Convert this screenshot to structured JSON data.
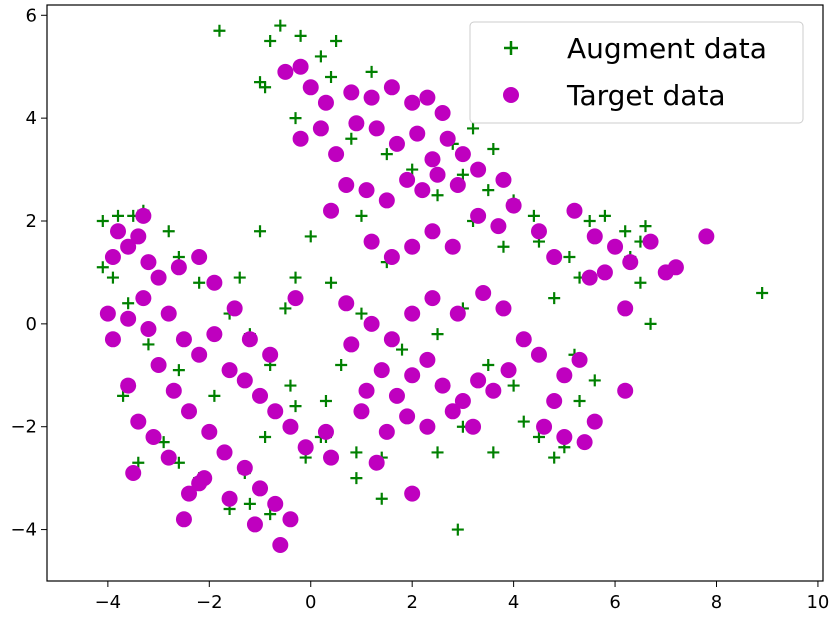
{
  "chart_data": {
    "type": "scatter",
    "title": "",
    "xlabel": "",
    "ylabel": "",
    "xlim": [
      -5.2,
      10.1
    ],
    "ylim": [
      -5.0,
      6.2
    ],
    "xticks": [
      -4,
      -2,
      0,
      2,
      4,
      6,
      8,
      10
    ],
    "yticks": [
      -4,
      -2,
      0,
      2,
      4,
      6
    ],
    "grid": false,
    "legend_position": "top-right",
    "series": [
      {
        "name": "Augment data",
        "marker": "plus",
        "color": "#008000",
        "points": [
          [
            -1.8,
            5.7
          ],
          [
            -0.6,
            5.8
          ],
          [
            -0.8,
            5.5
          ],
          [
            -0.2,
            5.6
          ],
          [
            0.5,
            5.5
          ],
          [
            0.2,
            5.2
          ],
          [
            -1.0,
            4.7
          ],
          [
            -0.9,
            4.6
          ],
          [
            1.2,
            4.9
          ],
          [
            0.4,
            4.8
          ],
          [
            -0.3,
            4.0
          ],
          [
            0.8,
            3.6
          ],
          [
            1.5,
            3.3
          ],
          [
            2.0,
            3.0
          ],
          [
            2.8,
            3.5
          ],
          [
            3.2,
            3.8
          ],
          [
            3.6,
            3.4
          ],
          [
            3.0,
            2.9
          ],
          [
            3.5,
            2.6
          ],
          [
            4.0,
            2.4
          ],
          [
            4.4,
            2.1
          ],
          [
            5.5,
            2.0
          ],
          [
            5.8,
            2.1
          ],
          [
            6.2,
            1.8
          ],
          [
            6.5,
            1.6
          ],
          [
            6.6,
            1.9
          ],
          [
            6.3,
            1.3
          ],
          [
            6.5,
            0.8
          ],
          [
            6.7,
            0.0
          ],
          [
            8.9,
            0.6
          ],
          [
            0.0,
            1.7
          ],
          [
            1.0,
            2.1
          ],
          [
            1.5,
            1.2
          ],
          [
            2.5,
            2.5
          ],
          [
            3.2,
            2.0
          ],
          [
            3.8,
            1.5
          ],
          [
            4.5,
            1.6
          ],
          [
            5.1,
            1.3
          ],
          [
            5.3,
            0.9
          ],
          [
            4.8,
            0.5
          ],
          [
            -1.0,
            1.8
          ],
          [
            -0.3,
            0.9
          ],
          [
            -0.5,
            0.3
          ],
          [
            0.4,
            0.8
          ],
          [
            1.0,
            0.2
          ],
          [
            1.8,
            -0.5
          ],
          [
            2.5,
            -0.2
          ],
          [
            3.0,
            0.3
          ],
          [
            3.5,
            -0.8
          ],
          [
            4.0,
            -1.2
          ],
          [
            4.2,
            -1.9
          ],
          [
            4.5,
            -2.2
          ],
          [
            4.8,
            -2.6
          ],
          [
            5.0,
            -2.4
          ],
          [
            5.3,
            -1.5
          ],
          [
            5.6,
            -1.1
          ],
          [
            5.2,
            -0.6
          ],
          [
            0.9,
            -2.5
          ],
          [
            1.4,
            -2.6
          ],
          [
            1.4,
            -3.4
          ],
          [
            0.9,
            -3.0
          ],
          [
            2.5,
            -2.5
          ],
          [
            3.0,
            -2.0
          ],
          [
            2.9,
            -4.0
          ],
          [
            3.6,
            -2.5
          ],
          [
            0.3,
            -1.5
          ],
          [
            0.6,
            -0.8
          ],
          [
            0.3,
            -2.2
          ],
          [
            -0.3,
            -1.6
          ],
          [
            -0.6,
            -4.3
          ],
          [
            -0.8,
            -3.7
          ],
          [
            -1.2,
            -3.5
          ],
          [
            -1.6,
            -3.6
          ],
          [
            -2.2,
            -3.0
          ],
          [
            -2.6,
            -2.7
          ],
          [
            -3.4,
            -2.7
          ],
          [
            -3.7,
            -1.4
          ],
          [
            -4.1,
            1.1
          ],
          [
            -4.1,
            2.0
          ],
          [
            -3.8,
            2.1
          ],
          [
            -3.5,
            2.1
          ],
          [
            -3.3,
            2.2
          ],
          [
            -2.6,
            1.3
          ],
          [
            -2.2,
            0.8
          ],
          [
            -1.6,
            0.2
          ],
          [
            -1.2,
            -0.2
          ],
          [
            -0.8,
            -0.8
          ],
          [
            -0.4,
            -1.2
          ],
          [
            -0.1,
            -2.6
          ],
          [
            0.2,
            -2.2
          ],
          [
            -1.9,
            -1.4
          ],
          [
            -2.6,
            -0.9
          ],
          [
            -3.2,
            -0.4
          ],
          [
            -3.6,
            0.4
          ],
          [
            -3.9,
            0.9
          ],
          [
            -2.8,
            1.8
          ],
          [
            -1.4,
            0.9
          ],
          [
            -0.9,
            -2.2
          ],
          [
            -2.9,
            -2.3
          ],
          [
            -1.3,
            -2.9
          ]
        ]
      },
      {
        "name": "Target data",
        "marker": "circle",
        "color": "#bf00bf",
        "points": [
          [
            -0.2,
            5.0
          ],
          [
            -0.5,
            4.9
          ],
          [
            0.0,
            4.6
          ],
          [
            0.3,
            4.3
          ],
          [
            0.8,
            4.5
          ],
          [
            1.2,
            4.4
          ],
          [
            1.6,
            4.6
          ],
          [
            2.0,
            4.3
          ],
          [
            2.3,
            4.4
          ],
          [
            2.6,
            4.1
          ],
          [
            -0.2,
            3.6
          ],
          [
            0.2,
            3.8
          ],
          [
            0.5,
            3.3
          ],
          [
            0.9,
            3.9
          ],
          [
            1.3,
            3.8
          ],
          [
            1.7,
            3.5
          ],
          [
            2.1,
            3.7
          ],
          [
            2.4,
            3.2
          ],
          [
            2.7,
            3.6
          ],
          [
            3.0,
            3.3
          ],
          [
            3.3,
            3.0
          ],
          [
            2.9,
            2.7
          ],
          [
            2.5,
            2.9
          ],
          [
            2.2,
            2.6
          ],
          [
            1.9,
            2.8
          ],
          [
            1.5,
            2.4
          ],
          [
            1.1,
            2.6
          ],
          [
            0.7,
            2.7
          ],
          [
            0.4,
            2.2
          ],
          [
            3.8,
            2.8
          ],
          [
            4.0,
            2.3
          ],
          [
            3.7,
            1.9
          ],
          [
            3.3,
            2.1
          ],
          [
            2.8,
            1.5
          ],
          [
            2.4,
            1.8
          ],
          [
            2.0,
            1.5
          ],
          [
            1.6,
            1.3
          ],
          [
            1.2,
            1.6
          ],
          [
            4.5,
            1.8
          ],
          [
            4.8,
            1.3
          ],
          [
            5.2,
            2.2
          ],
          [
            5.6,
            1.7
          ],
          [
            6.0,
            1.5
          ],
          [
            6.3,
            1.2
          ],
          [
            6.7,
            1.6
          ],
          [
            7.2,
            1.1
          ],
          [
            7.0,
            1.0
          ],
          [
            7.8,
            1.7
          ],
          [
            5.8,
            1.0
          ],
          [
            5.5,
            0.9
          ],
          [
            6.2,
            0.3
          ],
          [
            6.2,
            -1.3
          ],
          [
            5.3,
            -0.7
          ],
          [
            5.0,
            -1.0
          ],
          [
            4.8,
            -1.5
          ],
          [
            4.5,
            -0.6
          ],
          [
            4.2,
            -0.3
          ],
          [
            3.9,
            -0.9
          ],
          [
            4.6,
            -2.0
          ],
          [
            5.0,
            -2.2
          ],
          [
            5.4,
            -2.3
          ],
          [
            5.6,
            -1.9
          ],
          [
            3.6,
            -1.3
          ],
          [
            3.3,
            -1.1
          ],
          [
            3.0,
            -1.5
          ],
          [
            2.6,
            -1.2
          ],
          [
            2.3,
            -0.7
          ],
          [
            2.0,
            -1.0
          ],
          [
            1.7,
            -1.4
          ],
          [
            1.4,
            -0.9
          ],
          [
            1.1,
            -1.3
          ],
          [
            1.9,
            -1.8
          ],
          [
            2.3,
            -2.0
          ],
          [
            2.8,
            -1.7
          ],
          [
            3.2,
            -2.0
          ],
          [
            1.5,
            -2.1
          ],
          [
            1.0,
            -1.7
          ],
          [
            0.8,
            -0.4
          ],
          [
            1.2,
            0.0
          ],
          [
            1.6,
            -0.3
          ],
          [
            2.0,
            0.2
          ],
          [
            2.4,
            0.5
          ],
          [
            2.9,
            0.2
          ],
          [
            3.4,
            0.6
          ],
          [
            3.8,
            0.3
          ],
          [
            2.0,
            -3.3
          ],
          [
            1.3,
            -2.7
          ],
          [
            0.4,
            -2.6
          ],
          [
            0.7,
            0.4
          ],
          [
            -0.3,
            0.5
          ],
          [
            -3.8,
            1.8
          ],
          [
            -3.6,
            1.5
          ],
          [
            -3.4,
            1.7
          ],
          [
            -3.2,
            1.2
          ],
          [
            -3.0,
            0.9
          ],
          [
            -3.3,
            0.5
          ],
          [
            -3.6,
            0.1
          ],
          [
            -3.9,
            -0.3
          ],
          [
            -3.2,
            -0.1
          ],
          [
            -2.8,
            0.2
          ],
          [
            -2.5,
            -0.3
          ],
          [
            -2.2,
            -0.6
          ],
          [
            -1.9,
            -0.2
          ],
          [
            -1.6,
            -0.9
          ],
          [
            -1.3,
            -1.1
          ],
          [
            -1.0,
            -1.4
          ],
          [
            -0.7,
            -1.7
          ],
          [
            -0.4,
            -2.0
          ],
          [
            -0.1,
            -2.4
          ],
          [
            0.3,
            -2.1
          ],
          [
            -2.6,
            1.1
          ],
          [
            -2.2,
            1.3
          ],
          [
            -1.9,
            0.8
          ],
          [
            -1.5,
            0.3
          ],
          [
            -1.2,
            -0.3
          ],
          [
            -0.8,
            -0.6
          ],
          [
            -3.0,
            -0.8
          ],
          [
            -2.7,
            -1.3
          ],
          [
            -2.4,
            -1.7
          ],
          [
            -2.0,
            -2.1
          ],
          [
            -1.7,
            -2.5
          ],
          [
            -1.3,
            -2.8
          ],
          [
            -1.0,
            -3.2
          ],
          [
            -0.7,
            -3.5
          ],
          [
            -0.4,
            -3.8
          ],
          [
            -0.6,
            -4.3
          ],
          [
            -1.1,
            -3.9
          ],
          [
            -1.6,
            -3.4
          ],
          [
            -2.1,
            -3.0
          ],
          [
            -2.4,
            -3.3
          ],
          [
            -3.6,
            -1.2
          ],
          [
            -3.4,
            -1.9
          ],
          [
            -3.1,
            -2.2
          ],
          [
            -2.8,
            -2.6
          ],
          [
            -3.5,
            -2.9
          ],
          [
            -2.5,
            -3.8
          ],
          [
            -2.2,
            -3.1
          ],
          [
            -3.3,
            2.1
          ],
          [
            -3.9,
            1.3
          ],
          [
            -4.0,
            0.2
          ]
        ]
      }
    ]
  }
}
